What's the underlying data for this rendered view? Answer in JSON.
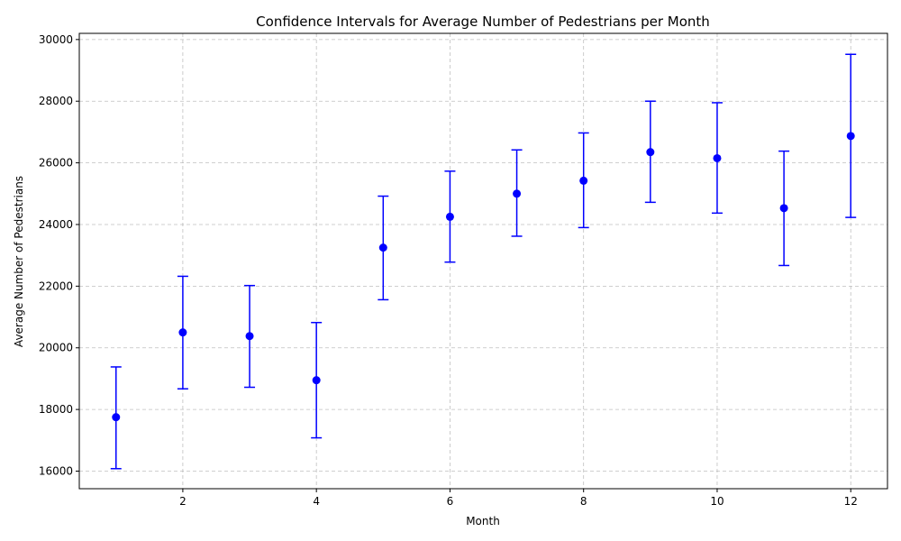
{
  "chart_data": {
    "type": "scatter",
    "title": "Confidence Intervals for Average Number of Pedestrians per Month",
    "xlabel": "Month",
    "ylabel": "Average Number of Pedestrians",
    "xlim": [
      0.45,
      12.55
    ],
    "ylim": [
      15430,
      30200
    ],
    "xticks": [
      2,
      4,
      6,
      8,
      10,
      12
    ],
    "yticks": [
      16000,
      18000,
      20000,
      22000,
      24000,
      26000,
      28000,
      30000
    ],
    "xtick_labels": [
      "2",
      "4",
      "6",
      "8",
      "10",
      "12"
    ],
    "ytick_labels": [
      "16000",
      "18000",
      "20000",
      "22000",
      "24000",
      "26000",
      "28000",
      "30000"
    ],
    "grid": true,
    "color": "#0000ff",
    "series": [
      {
        "x": [
          1,
          2,
          3,
          4,
          5,
          6,
          7,
          8,
          9,
          10,
          11,
          12
        ],
        "y": [
          17750,
          20500,
          20380,
          18950,
          23250,
          24250,
          25000,
          25420,
          26350,
          26150,
          24530,
          26870
        ],
        "lower": [
          16080,
          18670,
          18720,
          17080,
          21560,
          22780,
          23620,
          23900,
          24720,
          24370,
          22670,
          24230
        ],
        "upper": [
          19380,
          22320,
          22020,
          20820,
          24920,
          25730,
          26420,
          26970,
          28000,
          27950,
          26380,
          29520
        ]
      }
    ]
  }
}
